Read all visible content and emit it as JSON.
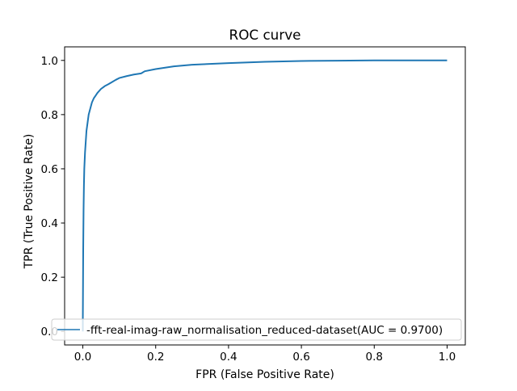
{
  "chart_data": {
    "type": "line",
    "title": "ROC curve",
    "xlabel": "FPR (False Positive Rate)",
    "ylabel": "TPR (True Positive Rate)",
    "xlim": [
      -0.05,
      1.05
    ],
    "ylim": [
      -0.05,
      1.05
    ],
    "x_ticks": [
      0.0,
      0.2,
      0.4,
      0.6,
      0.8,
      1.0
    ],
    "x_tick_labels": [
      "0.0",
      "0.2",
      "0.4",
      "0.6",
      "0.8",
      "1.0"
    ],
    "y_ticks": [
      0.0,
      0.2,
      0.4,
      0.6,
      0.8,
      1.0
    ],
    "y_tick_labels": [
      "0.0",
      "0.2",
      "0.4",
      "0.6",
      "0.8",
      "1.0"
    ],
    "grid": false,
    "legend_position": "lower right",
    "series": [
      {
        "name": "-fft-real-imag-raw_normalisation_reduced-dataset(AUC = 0.9700)",
        "color": "#1f77b4",
        "x": [
          0.0,
          0.0,
          0.001,
          0.002,
          0.003,
          0.004,
          0.006,
          0.008,
          0.01,
          0.013,
          0.016,
          0.02,
          0.025,
          0.03,
          0.035,
          0.04,
          0.05,
          0.06,
          0.07,
          0.08,
          0.09,
          0.1,
          0.12,
          0.14,
          0.16,
          0.17,
          0.2,
          0.25,
          0.3,
          0.4,
          0.5,
          0.6,
          0.7,
          0.8,
          0.9,
          1.0
        ],
        "y": [
          0.0,
          0.05,
          0.3,
          0.45,
          0.54,
          0.6,
          0.66,
          0.7,
          0.74,
          0.77,
          0.8,
          0.82,
          0.845,
          0.86,
          0.87,
          0.88,
          0.895,
          0.905,
          0.912,
          0.92,
          0.928,
          0.935,
          0.942,
          0.948,
          0.952,
          0.96,
          0.968,
          0.978,
          0.984,
          0.99,
          0.995,
          0.998,
          0.999,
          1.0,
          1.0,
          1.0
        ]
      }
    ]
  }
}
